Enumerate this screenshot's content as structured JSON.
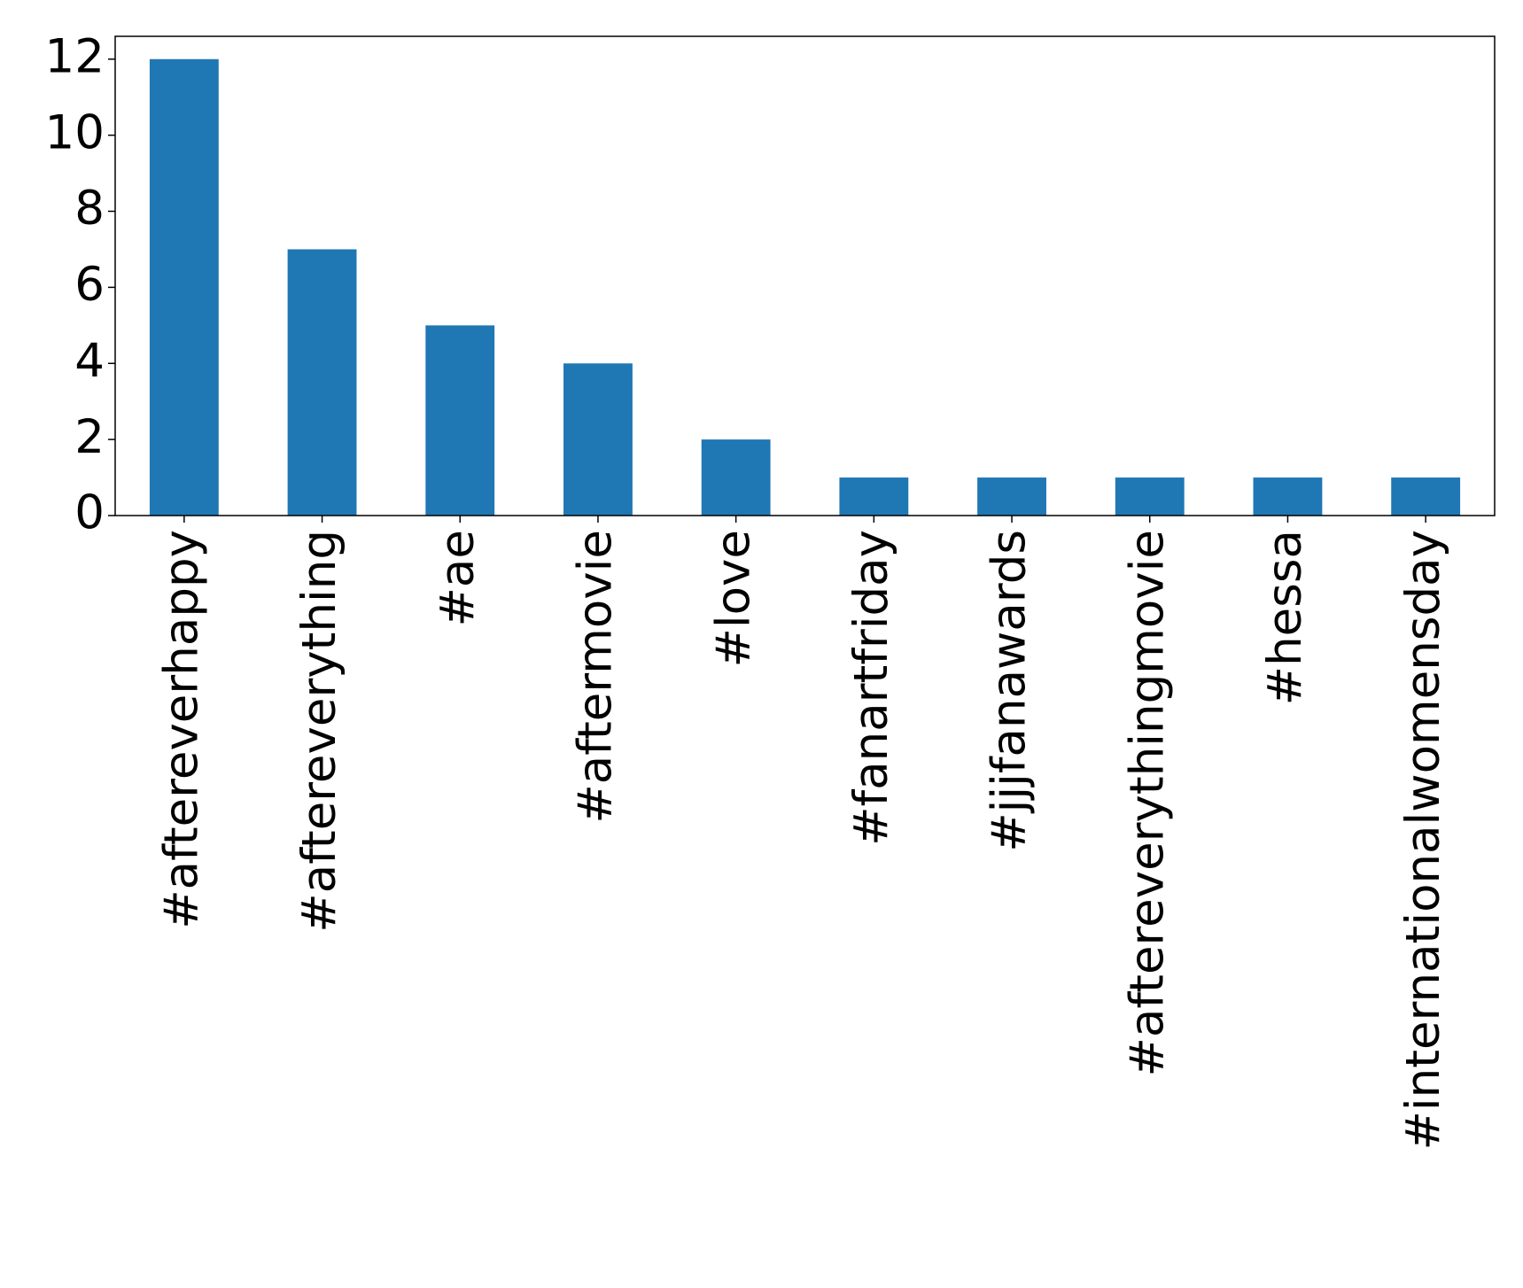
{
  "chart_data": {
    "type": "bar",
    "categories": [
      "#aftereverhappy",
      "#aftereverything",
      "#ae",
      "#aftermovie",
      "#love",
      "#fanartfriday",
      "#jjjfanawards",
      "#aftereverythingmovie",
      "#hessa",
      "#internationalwomensday"
    ],
    "values": [
      12,
      7,
      5,
      4,
      2,
      1,
      1,
      1,
      1,
      1
    ],
    "color": "#1f77b4",
    "ylim": [
      0,
      12.6
    ],
    "yticks": [
      0,
      2,
      4,
      6,
      8,
      10,
      12
    ],
    "grid": false
  }
}
